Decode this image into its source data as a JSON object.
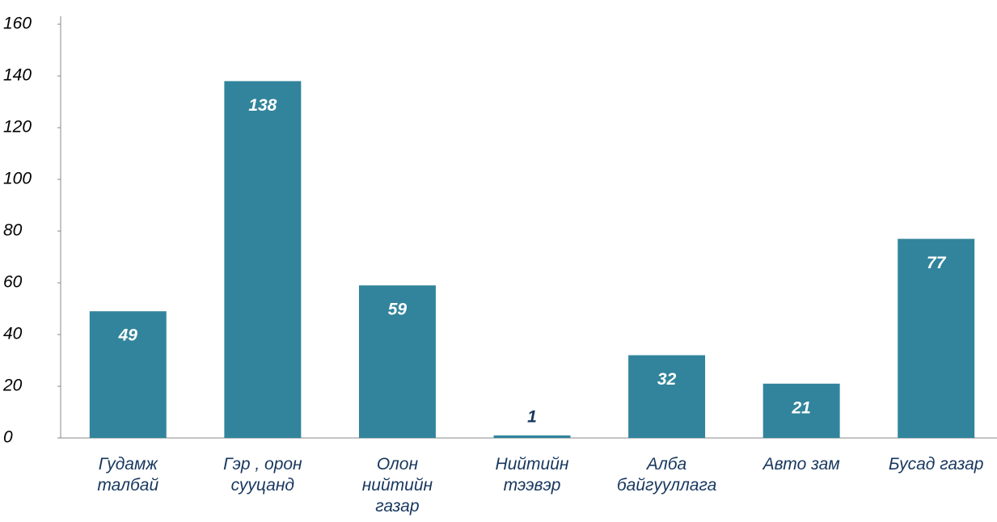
{
  "chart_data": {
    "type": "bar",
    "categories": [
      "Гудамж\nталбай",
      "Гэр , орон\nсууцанд",
      "Олон\nнийтийн\nгазар",
      "Нийтийн\nтээвэр",
      "Алба\nбайгууллага",
      "Авто зам",
      "Бусад газар"
    ],
    "values": [
      49,
      138,
      59,
      1,
      32,
      21,
      77
    ],
    "color": "#31849b",
    "ylim": [
      0,
      160
    ],
    "yticks": [
      0,
      20,
      40,
      60,
      80,
      100,
      120,
      140,
      160
    ],
    "grid": false
  }
}
